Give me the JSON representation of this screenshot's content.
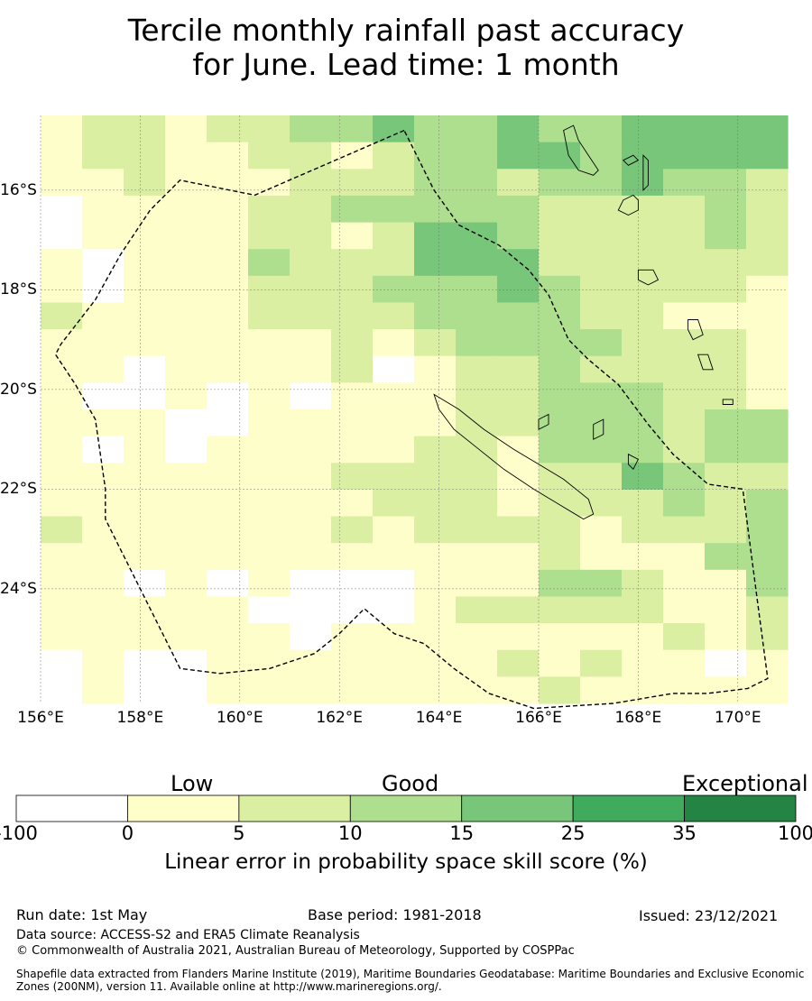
{
  "title": {
    "line1": "Tercile monthly rainfall past accuracy",
    "line2": "for June. Lead time: 1 month"
  },
  "map": {
    "lon_range": [
      156,
      171
    ],
    "lat_range": [
      -14.5,
      -26.3
    ],
    "x_ticks": [
      "156°E",
      "158°E",
      "160°E",
      "162°E",
      "164°E",
      "166°E",
      "168°E",
      "170°E"
    ],
    "y_ticks": [
      "16°S",
      "18°S",
      "20°S",
      "22°S",
      "24°S"
    ],
    "grid_cell_degrees": 0.83,
    "bin_colors": [
      "#ffffff",
      "#fefecb",
      "#dbefa3",
      "#aedf8f",
      "#78c679",
      "#41ab5d",
      "#238443"
    ],
    "skill_grid": [
      [
        1,
        2,
        2,
        1,
        2,
        2,
        3,
        3,
        4,
        3,
        3,
        4,
        3,
        3,
        4,
        4,
        4,
        4
      ],
      [
        1,
        2,
        2,
        1,
        1,
        2,
        2,
        1,
        2,
        3,
        3,
        4,
        4,
        3,
        4,
        4,
        4,
        4
      ],
      [
        1,
        1,
        2,
        1,
        1,
        1,
        2,
        2,
        2,
        3,
        3,
        2,
        3,
        3,
        4,
        3,
        3,
        2
      ],
      [
        0,
        1,
        1,
        1,
        1,
        2,
        2,
        3,
        3,
        3,
        3,
        3,
        2,
        2,
        2,
        2,
        3,
        2
      ],
      [
        0,
        1,
        1,
        1,
        1,
        2,
        2,
        1,
        2,
        4,
        4,
        3,
        2,
        2,
        2,
        2,
        3,
        2
      ],
      [
        1,
        0,
        1,
        1,
        1,
        3,
        2,
        2,
        2,
        4,
        4,
        4,
        2,
        2,
        2,
        2,
        2,
        2
      ],
      [
        1,
        0,
        1,
        1,
        1,
        2,
        2,
        2,
        3,
        3,
        3,
        4,
        3,
        2,
        2,
        2,
        2,
        1
      ],
      [
        2,
        1,
        1,
        1,
        1,
        2,
        2,
        2,
        2,
        3,
        3,
        3,
        3,
        2,
        2,
        1,
        1,
        1
      ],
      [
        1,
        1,
        1,
        1,
        1,
        1,
        1,
        2,
        1,
        2,
        3,
        3,
        3,
        3,
        2,
        2,
        2,
        1
      ],
      [
        1,
        1,
        0,
        1,
        1,
        1,
        1,
        2,
        0,
        1,
        2,
        2,
        3,
        2,
        2,
        2,
        2,
        1
      ],
      [
        1,
        0,
        0,
        1,
        0,
        1,
        0,
        1,
        1,
        1,
        2,
        2,
        3,
        3,
        3,
        2,
        2,
        1
      ],
      [
        1,
        1,
        1,
        0,
        0,
        1,
        1,
        1,
        1,
        1,
        2,
        2,
        3,
        3,
        3,
        2,
        3,
        3
      ],
      [
        1,
        0,
        1,
        0,
        1,
        1,
        1,
        1,
        1,
        2,
        2,
        1,
        3,
        3,
        3,
        2,
        3,
        3
      ],
      [
        1,
        1,
        1,
        1,
        1,
        1,
        1,
        2,
        2,
        2,
        2,
        1,
        2,
        2,
        4,
        3,
        2,
        2
      ],
      [
        1,
        1,
        1,
        1,
        1,
        1,
        1,
        1,
        2,
        2,
        2,
        1,
        2,
        2,
        2,
        3,
        2,
        3
      ],
      [
        2,
        1,
        1,
        1,
        1,
        1,
        1,
        2,
        1,
        2,
        2,
        2,
        2,
        1,
        2,
        2,
        2,
        3
      ],
      [
        1,
        1,
        1,
        1,
        1,
        1,
        1,
        1,
        1,
        1,
        1,
        1,
        2,
        1,
        1,
        1,
        3,
        3
      ],
      [
        1,
        1,
        0,
        1,
        0,
        1,
        0,
        0,
        0,
        1,
        1,
        1,
        3,
        3,
        2,
        1,
        1,
        3
      ],
      [
        1,
        1,
        1,
        1,
        1,
        0,
        0,
        0,
        0,
        1,
        2,
        2,
        2,
        2,
        2,
        1,
        1,
        2
      ],
      [
        1,
        1,
        1,
        1,
        1,
        1,
        0,
        1,
        1,
        1,
        1,
        1,
        1,
        1,
        1,
        2,
        1,
        2
      ],
      [
        0,
        1,
        0,
        0,
        1,
        1,
        1,
        1,
        1,
        1,
        1,
        2,
        1,
        2,
        1,
        1,
        0,
        1
      ],
      [
        0,
        1,
        0,
        0,
        1,
        1,
        1,
        1,
        1,
        1,
        1,
        1,
        2,
        1,
        1,
        1,
        1,
        1
      ]
    ],
    "eez_boundary_lonlat": [
      [
        163.3,
        -14.8
      ],
      [
        160.3,
        -16.1
      ],
      [
        158.8,
        -15.8
      ],
      [
        158.2,
        -16.4
      ],
      [
        157.6,
        -17.3
      ],
      [
        157.1,
        -18.2
      ],
      [
        156.4,
        -19.1
      ],
      [
        156.3,
        -19.3
      ],
      [
        156.7,
        -19.9
      ],
      [
        157.1,
        -20.6
      ],
      [
        157.3,
        -22.0
      ],
      [
        157.3,
        -22.6
      ],
      [
        157.6,
        -23.2
      ],
      [
        157.9,
        -23.8
      ],
      [
        158.4,
        -24.8
      ],
      [
        158.8,
        -25.6
      ],
      [
        159.6,
        -25.7
      ],
      [
        160.6,
        -25.6
      ],
      [
        161.5,
        -25.3
      ],
      [
        162.0,
        -24.9
      ],
      [
        162.5,
        -24.4
      ],
      [
        163.1,
        -24.9
      ],
      [
        163.7,
        -25.1
      ],
      [
        164.3,
        -25.6
      ],
      [
        165.0,
        -26.1
      ],
      [
        165.9,
        -26.4
      ],
      [
        167.5,
        -26.3
      ],
      [
        168.7,
        -26.1
      ],
      [
        169.4,
        -26.1
      ],
      [
        170.2,
        -26.0
      ],
      [
        170.6,
        -25.8
      ],
      [
        170.4,
        -24.3
      ],
      [
        170.1,
        -22.0
      ],
      [
        169.4,
        -21.9
      ],
      [
        168.7,
        -21.3
      ],
      [
        168.2,
        -20.7
      ],
      [
        167.6,
        -19.9
      ],
      [
        167.0,
        -19.4
      ],
      [
        166.6,
        -19.0
      ],
      [
        166.2,
        -18.1
      ],
      [
        165.8,
        -17.6
      ],
      [
        165.2,
        -17.1
      ],
      [
        164.4,
        -16.7
      ],
      [
        163.9,
        -16.0
      ],
      [
        163.3,
        -14.8
      ]
    ],
    "land_outlines_lonlat": [
      [
        [
          163.9,
          -20.1
        ],
        [
          164.4,
          -20.4
        ],
        [
          164.9,
          -20.8
        ],
        [
          165.5,
          -21.2
        ],
        [
          166.0,
          -21.5
        ],
        [
          166.5,
          -21.8
        ],
        [
          167.0,
          -22.2
        ],
        [
          167.1,
          -22.5
        ],
        [
          166.9,
          -22.6
        ],
        [
          166.4,
          -22.3
        ],
        [
          165.9,
          -22.0
        ],
        [
          165.3,
          -21.6
        ],
        [
          164.8,
          -21.2
        ],
        [
          164.3,
          -20.8
        ],
        [
          164.0,
          -20.4
        ],
        [
          163.9,
          -20.1
        ]
      ],
      [
        [
          166.5,
          -14.8
        ],
        [
          166.7,
          -14.7
        ],
        [
          166.8,
          -15.0
        ],
        [
          167.0,
          -15.3
        ],
        [
          167.2,
          -15.6
        ],
        [
          167.1,
          -15.7
        ],
        [
          166.8,
          -15.6
        ],
        [
          166.6,
          -15.3
        ],
        [
          166.5,
          -14.8
        ]
      ],
      [
        [
          167.7,
          -16.2
        ],
        [
          167.9,
          -16.1
        ],
        [
          168.0,
          -16.2
        ],
        [
          168.0,
          -16.4
        ],
        [
          167.8,
          -16.5
        ],
        [
          167.6,
          -16.4
        ],
        [
          167.7,
          -16.2
        ]
      ],
      [
        [
          168.1,
          -15.3
        ],
        [
          168.2,
          -15.4
        ],
        [
          168.2,
          -15.9
        ],
        [
          168.1,
          -16.0
        ],
        [
          168.1,
          -15.3
        ]
      ],
      [
        [
          167.7,
          -15.4
        ],
        [
          167.9,
          -15.3
        ],
        [
          168.0,
          -15.4
        ],
        [
          167.8,
          -15.5
        ],
        [
          167.7,
          -15.4
        ]
      ],
      [
        [
          168.0,
          -17.6
        ],
        [
          168.3,
          -17.6
        ],
        [
          168.4,
          -17.8
        ],
        [
          168.2,
          -17.9
        ],
        [
          168.0,
          -17.8
        ],
        [
          168.0,
          -17.6
        ]
      ],
      [
        [
          169.0,
          -18.6
        ],
        [
          169.2,
          -18.6
        ],
        [
          169.3,
          -18.9
        ],
        [
          169.1,
          -19.0
        ],
        [
          169.0,
          -18.8
        ],
        [
          169.0,
          -18.6
        ]
      ],
      [
        [
          169.2,
          -19.3
        ],
        [
          169.4,
          -19.3
        ],
        [
          169.5,
          -19.6
        ],
        [
          169.3,
          -19.6
        ],
        [
          169.2,
          -19.3
        ]
      ],
      [
        [
          167.1,
          -20.7
        ],
        [
          167.3,
          -20.6
        ],
        [
          167.3,
          -20.9
        ],
        [
          167.1,
          -21.0
        ],
        [
          167.1,
          -20.7
        ]
      ],
      [
        [
          167.8,
          -21.3
        ],
        [
          168.0,
          -21.4
        ],
        [
          167.9,
          -21.6
        ],
        [
          167.8,
          -21.5
        ],
        [
          167.8,
          -21.3
        ]
      ],
      [
        [
          166.0,
          -20.6
        ],
        [
          166.2,
          -20.5
        ],
        [
          166.2,
          -20.7
        ],
        [
          166.0,
          -20.8
        ],
        [
          166.0,
          -20.6
        ]
      ],
      [
        [
          169.7,
          -20.2
        ],
        [
          169.9,
          -20.2
        ],
        [
          169.9,
          -20.3
        ],
        [
          169.7,
          -20.3
        ],
        [
          169.7,
          -20.2
        ]
      ]
    ]
  },
  "legend": {
    "categories": [
      "Low",
      "Good",
      "Exceptional"
    ],
    "boundaries": [
      "-100",
      "0",
      "5",
      "10",
      "15",
      "25",
      "35",
      "100"
    ],
    "title": "Linear error in probability space skill score (%)"
  },
  "footer": {
    "run_date": "Run date: 1st May",
    "base_period": "Base period: 1981-2018",
    "issued": "Issued: 23/12/2021",
    "data_source": "Data source: ACCESS-S2 and ERA5 Climate Reanalysis",
    "copyright": "© Commonwealth of Australia 2021, Australian Bureau of Meteorology, Supported by COSPPac",
    "shapefile_line1": "Shapefile data extracted from Flanders Marine Institute (2019), Maritime Boundaries Geodatabase: Maritime Boundaries and Exclusive Economic",
    "shapefile_line2": "Zones (200NM), version 11. Available online at http://www.marineregions.org/."
  }
}
